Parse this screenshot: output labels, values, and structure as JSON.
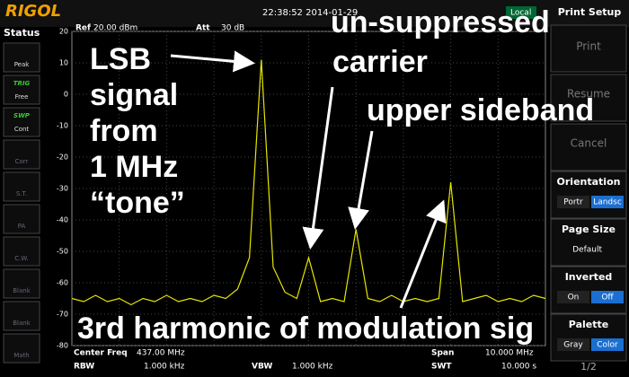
{
  "header": {
    "brand": "RIGOL",
    "time": "22:38:52 2014-01-29",
    "mode": "Local",
    "ref": "Ref",
    "ref_value": "20.00 dBm",
    "att": "Att",
    "att_value": "30 dB"
  },
  "status": {
    "title": "Status",
    "buttons": [
      {
        "label": "Peak"
      },
      {
        "title": "TRIG",
        "label": "Free"
      },
      {
        "title": "SWP",
        "label": "Cont"
      },
      {
        "label": "Corr"
      },
      {
        "label": "S.T."
      },
      {
        "label": "PA"
      },
      {
        "label": "C.W."
      },
      {
        "label": "Blank"
      },
      {
        "label": "Blank"
      },
      {
        "label": "Math"
      }
    ]
  },
  "menu": {
    "title": "Print Setup",
    "print": "Print",
    "resume": "Resume",
    "cancel": "Cancel",
    "orientation": {
      "title": "Orientation",
      "options": [
        "Portr",
        "Landsc"
      ]
    },
    "page_size": {
      "title": "Page Size",
      "value": "Default"
    },
    "inverted": {
      "title": "Inverted",
      "options": [
        "On",
        "Off"
      ]
    },
    "palette": {
      "title": "Palette",
      "options": [
        "Gray",
        "Color"
      ]
    },
    "page": "1/2"
  },
  "footer": {
    "center_label": "Center Freq",
    "center_value": "437.00 MHz",
    "rbw_label": "RBW",
    "rbw_value": "1.000 kHz",
    "vbw_label": "VBW",
    "vbw_value": "1.000 kHz",
    "span_label": "Span",
    "span_value": "10.000 MHz",
    "swt_label": "SWT",
    "swt_value": "10.000 s"
  },
  "annotations": {
    "lsb": [
      "LSB",
      "signal",
      "from",
      "1 MHz",
      "“tone”"
    ],
    "carrier": [
      "un-suppressed",
      "carrier"
    ],
    "usb": "upper sideband",
    "harmonic": "3rd harmonic of modulation sig"
  },
  "chart_data": {
    "type": "line",
    "color": "#e6e600",
    "grid": true,
    "x": [
      432,
      432.25,
      432.5,
      432.75,
      433,
      433.25,
      433.5,
      433.75,
      434,
      434.25,
      434.5,
      434.75,
      435,
      435.25,
      435.5,
      435.75,
      436,
      436.25,
      436.5,
      436.75,
      437,
      437.25,
      437.5,
      437.75,
      438,
      438.25,
      438.5,
      438.75,
      439,
      439.25,
      439.5,
      439.75,
      440,
      440.25,
      440.5,
      440.75,
      441,
      441.25,
      441.5,
      441.75,
      442
    ],
    "values": [
      -65,
      -66,
      -64,
      -66,
      -65,
      -67,
      -65,
      -66,
      -64,
      -66,
      -65,
      -66,
      -64,
      -65,
      -62,
      -52,
      11,
      -55,
      -63,
      -65,
      -52,
      -66,
      -65,
      -66,
      -43,
      -65,
      -66,
      -64,
      -66,
      -65,
      -66,
      -65,
      -28,
      -66,
      -65,
      -64,
      -66,
      -65,
      -66,
      -64,
      -65
    ],
    "xlim": [
      432,
      442
    ],
    "ylim": [
      -80,
      20
    ],
    "yticks": [
      20,
      10,
      0,
      -10,
      -20,
      -30,
      -40,
      -50,
      -60,
      -70,
      -80
    ]
  }
}
